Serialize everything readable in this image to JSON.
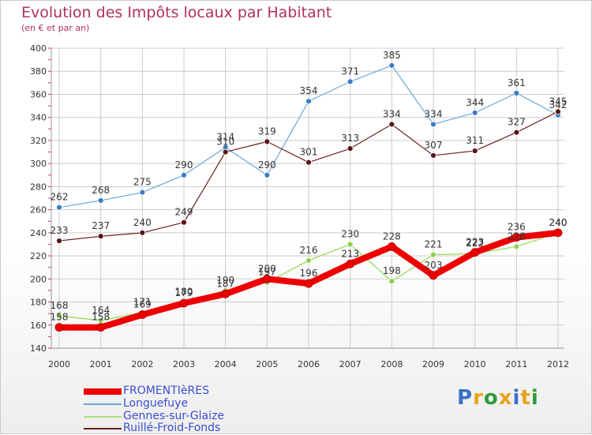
{
  "header": {
    "title": "Evolution des Impôts locaux par Habitant",
    "subtitle": "(en € et par an)"
  },
  "logo": {
    "letters": [
      "P",
      "r",
      "o",
      "x",
      "i",
      "t",
      "i"
    ],
    "colors": [
      "#3a6fc4",
      "#e8a21c",
      "#2e9a3c",
      "#e8a21c",
      "#3a6fc4",
      "#e8a21c",
      "#2e9a3c"
    ]
  },
  "colors": {
    "accent": "#b0305e",
    "grid": "#cccccc",
    "tick": "#cc3366"
  },
  "chart_data": {
    "type": "line",
    "title": "Evolution des Impôts locaux par Habitant",
    "subtitle": "(en € et par an)",
    "xlabel": "",
    "ylabel": "",
    "x": [
      "2000",
      "2001",
      "2002",
      "2003",
      "2004",
      "2005",
      "2006",
      "2007",
      "2008",
      "2009",
      "2010",
      "2011",
      "2012"
    ],
    "ylim": [
      140,
      400
    ],
    "yticks": [
      140,
      160,
      180,
      200,
      220,
      240,
      260,
      280,
      300,
      320,
      340,
      360,
      380,
      400
    ],
    "grid": true,
    "legend": "bottom-left",
    "series": [
      {
        "name": "Longuefuye",
        "color": "#6aa6d8",
        "marker": "#3a7fc4",
        "width": 1.2,
        "values": [
          262,
          268,
          275,
          290,
          314,
          290,
          354,
          371,
          385,
          334,
          344,
          361,
          342
        ]
      },
      {
        "name": "Ruillé-Froid-Fonds",
        "color": "#6b1f1f",
        "marker": "#5a1414",
        "width": 1.2,
        "values": [
          233,
          237,
          240,
          249,
          310,
          319,
          301,
          313,
          334,
          307,
          311,
          327,
          345
        ]
      },
      {
        "name": "Gennes-sur-Glaize",
        "color": "#a8e07a",
        "marker": "#8fd14f",
        "width": 1.6,
        "values": [
          168,
          164,
          171,
          180,
          190,
          197,
          216,
          230,
          198,
          221,
          222,
          228,
          240
        ]
      },
      {
        "name": "FROMENTIèRES",
        "color": "#ee0000",
        "marker": "#ee0000",
        "width": 8,
        "values": [
          158,
          158,
          169,
          179,
          187,
          200,
          196,
          213,
          228,
          203,
          223,
          236,
          240
        ]
      }
    ],
    "legend_order": [
      "FROMENTIèRES",
      "Longuefuye",
      "Gennes-sur-Glaize",
      "Ruillé-Froid-Fonds"
    ]
  }
}
